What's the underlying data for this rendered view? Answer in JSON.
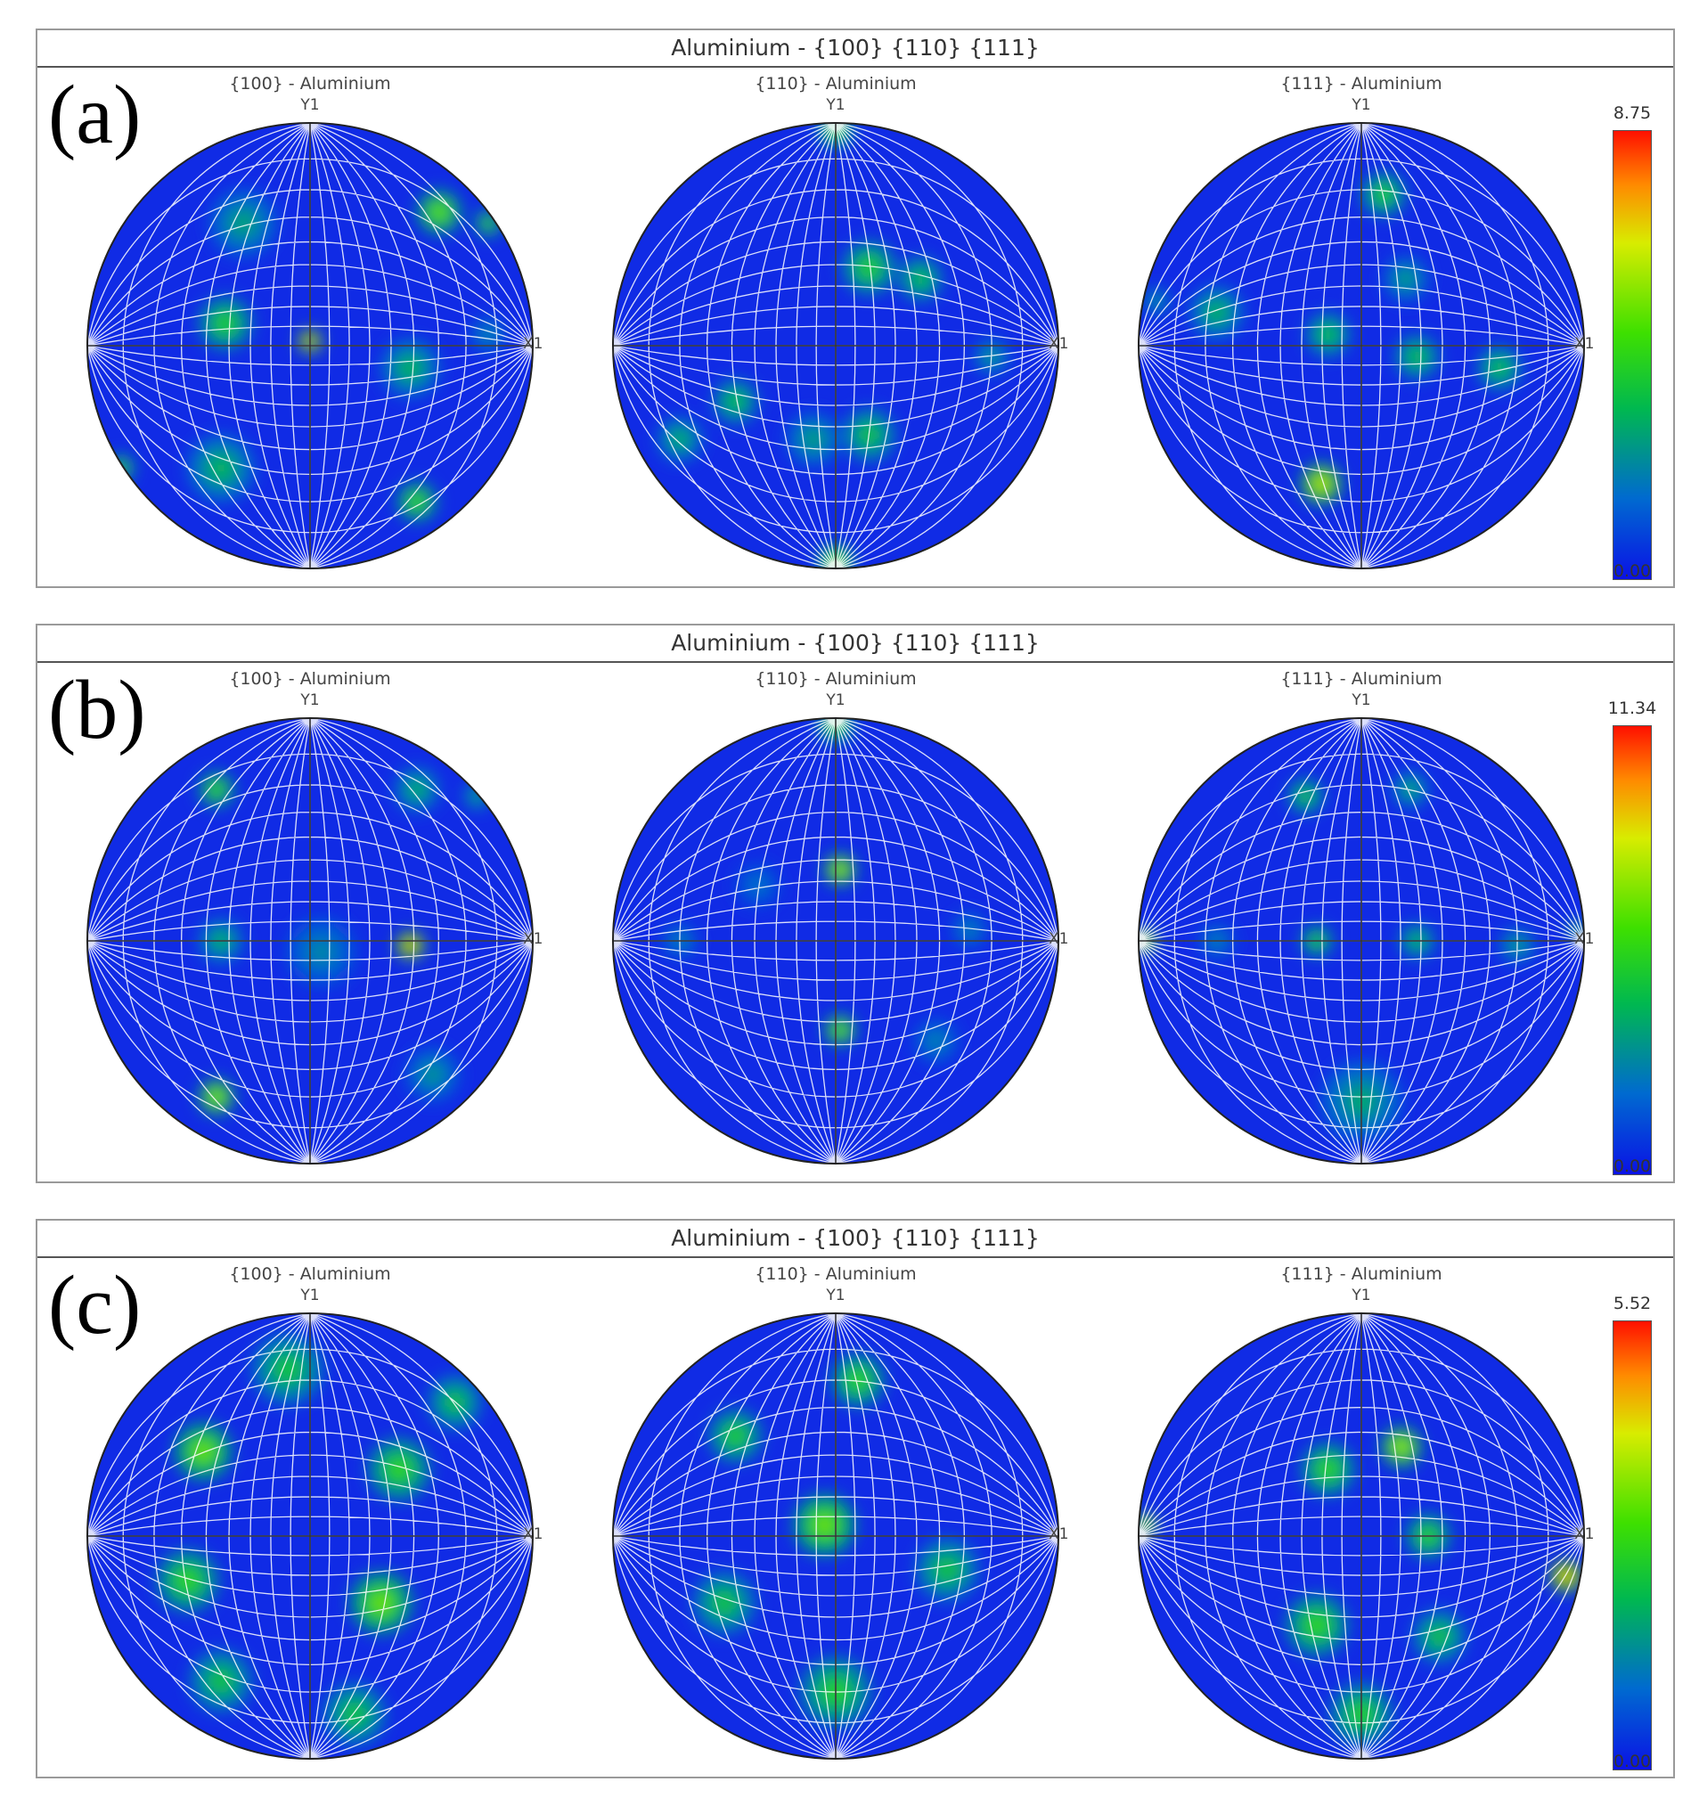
{
  "chart_data": [
    {
      "type": "heatmap",
      "panel_label": "(a)",
      "title": "Aluminium - {100} {110} {111}",
      "scale": {
        "max_label": "8.75",
        "min_label": "0.00",
        "min": 0.0,
        "max": 8.75
      },
      "axis_labels": {
        "y": "Y1",
        "x": "X1"
      },
      "pole_figures": [
        {
          "title": "{100} - Aluminium",
          "peaks": [
            {
              "x": 0.0,
              "y": 0.02,
              "v": 8.75,
              "s": 0.05
            },
            {
              "x": -0.38,
              "y": 0.1,
              "v": 4.5,
              "s": 0.12
            },
            {
              "x": 0.58,
              "y": 0.6,
              "v": 5.5,
              "s": 0.1
            },
            {
              "x": 0.8,
              "y": 0.55,
              "v": 5.0,
              "s": 0.06
            },
            {
              "x": 0.48,
              "y": -0.7,
              "v": 5.0,
              "s": 0.09
            },
            {
              "x": -0.85,
              "y": -0.55,
              "v": 5.0,
              "s": 0.06
            },
            {
              "x": -0.4,
              "y": -0.55,
              "v": 3.5,
              "s": 0.15
            },
            {
              "x": 0.45,
              "y": -0.1,
              "v": 3.5,
              "s": 0.13
            },
            {
              "x": -0.3,
              "y": 0.55,
              "v": 3.0,
              "s": 0.15
            },
            {
              "x": 0.8,
              "y": 0.05,
              "v": 2.5,
              "s": 0.08
            }
          ]
        },
        {
          "title": "{110} - Aluminium",
          "peaks": [
            {
              "x": 0.0,
              "y": 0.97,
              "v": 5.0,
              "s": 0.08
            },
            {
              "x": 0.0,
              "y": -0.97,
              "v": 5.5,
              "s": 0.08
            },
            {
              "x": 0.15,
              "y": 0.35,
              "v": 4.5,
              "s": 0.12
            },
            {
              "x": 0.38,
              "y": 0.3,
              "v": 4.0,
              "s": 0.1
            },
            {
              "x": -0.45,
              "y": -0.25,
              "v": 4.0,
              "s": 0.1
            },
            {
              "x": -0.7,
              "y": -0.42,
              "v": 3.5,
              "s": 0.1
            },
            {
              "x": 0.15,
              "y": -0.4,
              "v": 4.0,
              "s": 0.12
            },
            {
              "x": -0.1,
              "y": -0.42,
              "v": 3.0,
              "s": 0.12
            },
            {
              "x": 0.7,
              "y": -0.05,
              "v": 3.0,
              "s": 0.08
            }
          ]
        },
        {
          "title": "{111} - Aluminium",
          "peaks": [
            {
              "x": -0.18,
              "y": -0.62,
              "v": 7.0,
              "s": 0.09
            },
            {
              "x": 0.1,
              "y": 0.68,
              "v": 4.5,
              "s": 0.1
            },
            {
              "x": -0.15,
              "y": 0.05,
              "v": 4.0,
              "s": 0.1
            },
            {
              "x": 0.25,
              "y": -0.05,
              "v": 4.0,
              "s": 0.1
            },
            {
              "x": -0.65,
              "y": 0.15,
              "v": 3.5,
              "s": 0.12
            },
            {
              "x": 0.62,
              "y": -0.1,
              "v": 4.0,
              "s": 0.1
            },
            {
              "x": 0.2,
              "y": 0.3,
              "v": 3.0,
              "s": 0.1
            },
            {
              "x": -0.92,
              "y": 0.2,
              "v": 3.0,
              "s": 0.06
            }
          ]
        }
      ]
    },
    {
      "type": "heatmap",
      "panel_label": "(b)",
      "title": "Aluminium - {100} {110} {111}",
      "scale": {
        "max_label": "11.34",
        "min_label": "0.00",
        "min": 0.0,
        "max": 11.34
      },
      "axis_labels": {
        "y": "Y1",
        "x": "X1"
      },
      "pole_figures": [
        {
          "title": "{100} - Aluminium",
          "peaks": [
            {
              "x": 0.45,
              "y": -0.02,
              "v": 11.34,
              "s": 0.06
            },
            {
              "x": -0.42,
              "y": 0.68,
              "v": 6.5,
              "s": 0.08
            },
            {
              "x": -0.42,
              "y": -0.7,
              "v": 8.0,
              "s": 0.08
            },
            {
              "x": 0.48,
              "y": 0.68,
              "v": 4.5,
              "s": 0.1
            },
            {
              "x": 0.75,
              "y": 0.65,
              "v": 4.5,
              "s": 0.06
            },
            {
              "x": -0.4,
              "y": 0.0,
              "v": 4.5,
              "s": 0.1
            },
            {
              "x": 0.05,
              "y": -0.05,
              "v": 3.0,
              "s": 0.16
            },
            {
              "x": 0.55,
              "y": -0.6,
              "v": 3.5,
              "s": 0.12
            }
          ]
        },
        {
          "title": "{110} - Aluminium",
          "peaks": [
            {
              "x": 0.0,
              "y": 0.97,
              "v": 6.5,
              "s": 0.08
            },
            {
              "x": 0.02,
              "y": 0.32,
              "v": 8.5,
              "s": 0.07
            },
            {
              "x": 0.02,
              "y": -0.4,
              "v": 7.5,
              "s": 0.07
            },
            {
              "x": -0.7,
              "y": 0.0,
              "v": 3.0,
              "s": 0.08
            },
            {
              "x": 0.6,
              "y": 0.05,
              "v": 3.0,
              "s": 0.08
            },
            {
              "x": -0.35,
              "y": 0.25,
              "v": 2.5,
              "s": 0.1
            },
            {
              "x": 0.45,
              "y": -0.45,
              "v": 3.0,
              "s": 0.1
            }
          ]
        },
        {
          "title": "{111} - Aluminium",
          "peaks": [
            {
              "x": -0.97,
              "y": 0.0,
              "v": 9.0,
              "s": 0.05
            },
            {
              "x": 0.97,
              "y": 0.05,
              "v": 6.5,
              "s": 0.04
            },
            {
              "x": -0.2,
              "y": 0.0,
              "v": 6.0,
              "s": 0.07
            },
            {
              "x": 0.25,
              "y": 0.0,
              "v": 5.0,
              "s": 0.08
            },
            {
              "x": -0.25,
              "y": 0.65,
              "v": 5.5,
              "s": 0.08
            },
            {
              "x": 0.22,
              "y": 0.68,
              "v": 4.5,
              "s": 0.08
            },
            {
              "x": 0.7,
              "y": -0.02,
              "v": 4.0,
              "s": 0.08
            },
            {
              "x": 0.0,
              "y": -0.72,
              "v": 4.0,
              "s": 0.18
            },
            {
              "x": -0.65,
              "y": 0.0,
              "v": 3.0,
              "s": 0.08
            }
          ]
        }
      ]
    },
    {
      "type": "heatmap",
      "panel_label": "(c)",
      "title": "Aluminium - {100} {110} {111}",
      "scale": {
        "max_label": "5.52",
        "min_label": "0.00",
        "min": 0.0,
        "max": 5.52
      },
      "axis_labels": {
        "y": "Y1",
        "x": "X1"
      },
      "pole_figures": [
        {
          "title": "{100} - Aluminium",
          "peaks": [
            {
              "x": -0.48,
              "y": 0.38,
              "v": 3.5,
              "s": 0.13
            },
            {
              "x": 0.32,
              "y": -0.3,
              "v": 3.5,
              "s": 0.14
            },
            {
              "x": -0.55,
              "y": -0.2,
              "v": 3.0,
              "s": 0.14
            },
            {
              "x": 0.4,
              "y": 0.3,
              "v": 3.0,
              "s": 0.14
            },
            {
              "x": -0.1,
              "y": 0.75,
              "v": 2.5,
              "s": 0.16
            },
            {
              "x": 0.2,
              "y": -0.8,
              "v": 2.5,
              "s": 0.14
            },
            {
              "x": -0.4,
              "y": -0.65,
              "v": 2.5,
              "s": 0.14
            },
            {
              "x": 0.65,
              "y": 0.6,
              "v": 2.5,
              "s": 0.12
            }
          ]
        },
        {
          "title": "{110} - Aluminium",
          "peaks": [
            {
              "x": -0.05,
              "y": 0.05,
              "v": 3.5,
              "s": 0.14
            },
            {
              "x": 0.1,
              "y": 0.7,
              "v": 3.0,
              "s": 0.12
            },
            {
              "x": -0.45,
              "y": 0.45,
              "v": 2.8,
              "s": 0.12
            },
            {
              "x": -0.5,
              "y": -0.3,
              "v": 2.5,
              "s": 0.14
            },
            {
              "x": 0.5,
              "y": -0.15,
              "v": 2.5,
              "s": 0.14
            },
            {
              "x": 0.0,
              "y": -0.7,
              "v": 2.8,
              "s": 0.16
            }
          ]
        },
        {
          "title": "{111} - Aluminium",
          "peaks": [
            {
              "x": 0.92,
              "y": -0.18,
              "v": 5.52,
              "s": 0.07
            },
            {
              "x": -0.97,
              "y": 0.05,
              "v": 4.5,
              "s": 0.05
            },
            {
              "x": 0.18,
              "y": 0.4,
              "v": 4.0,
              "s": 0.09
            },
            {
              "x": -0.15,
              "y": 0.3,
              "v": 3.0,
              "s": 0.12
            },
            {
              "x": 0.3,
              "y": 0.0,
              "v": 3.0,
              "s": 0.1
            },
            {
              "x": -0.2,
              "y": -0.4,
              "v": 3.0,
              "s": 0.14
            },
            {
              "x": 0.0,
              "y": -0.8,
              "v": 2.8,
              "s": 0.14
            },
            {
              "x": 0.35,
              "y": -0.45,
              "v": 2.5,
              "s": 0.12
            }
          ]
        }
      ]
    }
  ]
}
